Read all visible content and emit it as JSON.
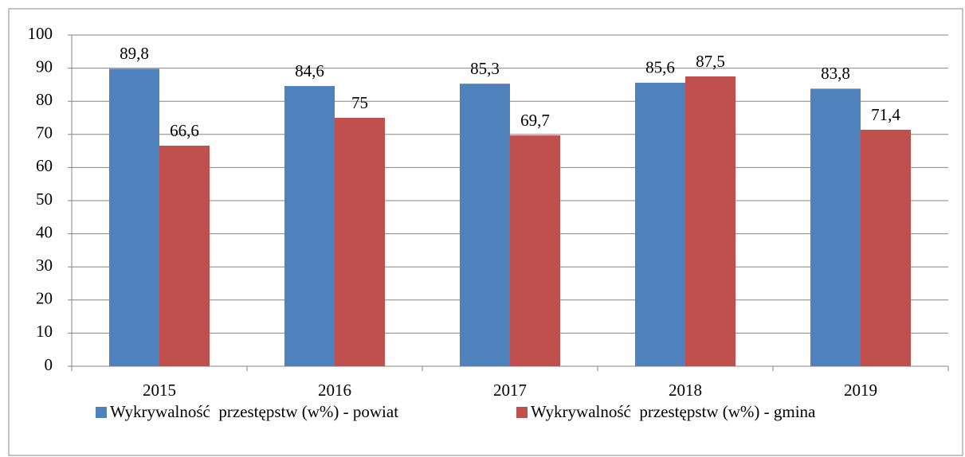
{
  "chart_data": {
    "type": "bar",
    "categories": [
      "2015",
      "2016",
      "2017",
      "2018",
      "2019"
    ],
    "series": [
      {
        "name": "Wykrywalność  przestępstw (w%) - powiat",
        "color": "#4f81bd",
        "values": [
          89.8,
          84.6,
          85.3,
          85.6,
          83.8
        ],
        "value_labels": [
          "89,8",
          "84,6",
          "85,3",
          "85,6",
          "83,8"
        ]
      },
      {
        "name": "Wykrywalność  przestępstw (w%) - gmina",
        "color": "#c0504d",
        "values": [
          66.6,
          75,
          69.7,
          87.5,
          71.4
        ],
        "value_labels": [
          "66,6",
          "75",
          "69,7",
          "87,5",
          "71,4"
        ]
      }
    ],
    "ylim": [
      0,
      100
    ],
    "yticks": [
      0,
      10,
      20,
      30,
      40,
      50,
      60,
      70,
      80,
      90,
      100
    ],
    "grid": true,
    "legend": "bottom"
  }
}
